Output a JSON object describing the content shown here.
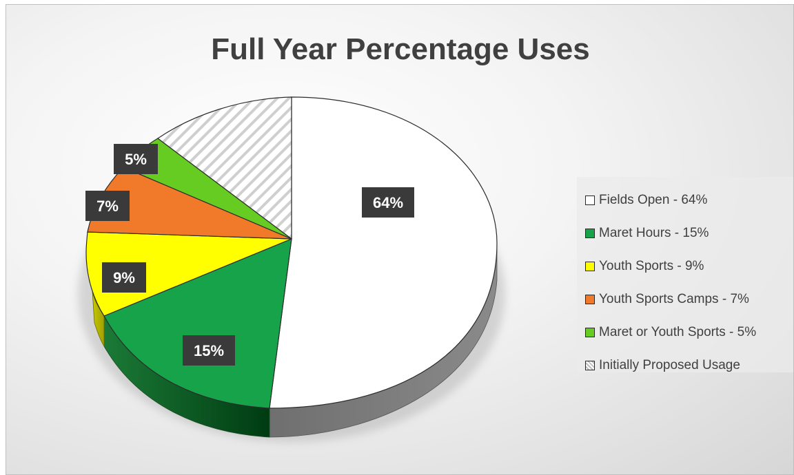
{
  "chart_data": {
    "type": "pie",
    "title": "Full Year Percentage Uses",
    "slices": [
      {
        "name": "Fields Open - 64%",
        "value": 64,
        "label": "64%",
        "color": "#ffffff",
        "pattern": "solid"
      },
      {
        "name": "Maret Hours - 15%",
        "value": 15,
        "label": "15%",
        "color": "#17a34a",
        "pattern": "solid"
      },
      {
        "name": "Youth Sports - 9%",
        "value": 9,
        "label": "9%",
        "color": "#ffff00",
        "pattern": "solid"
      },
      {
        "name": "Youth Sports Camps - 7%",
        "value": 7,
        "label": "7%",
        "color": "#f07a2a",
        "pattern": "solid"
      },
      {
        "name": "Maret or Youth Sports - 5%",
        "value": 5,
        "label": "5%",
        "color": "#66cc22",
        "pattern": "solid"
      },
      {
        "name": "Initially Proposed Usage",
        "value": 0,
        "label": "",
        "color": "#ffffff",
        "pattern": "diagonal-stripes"
      }
    ],
    "legend_position": "right",
    "style": "3d"
  }
}
